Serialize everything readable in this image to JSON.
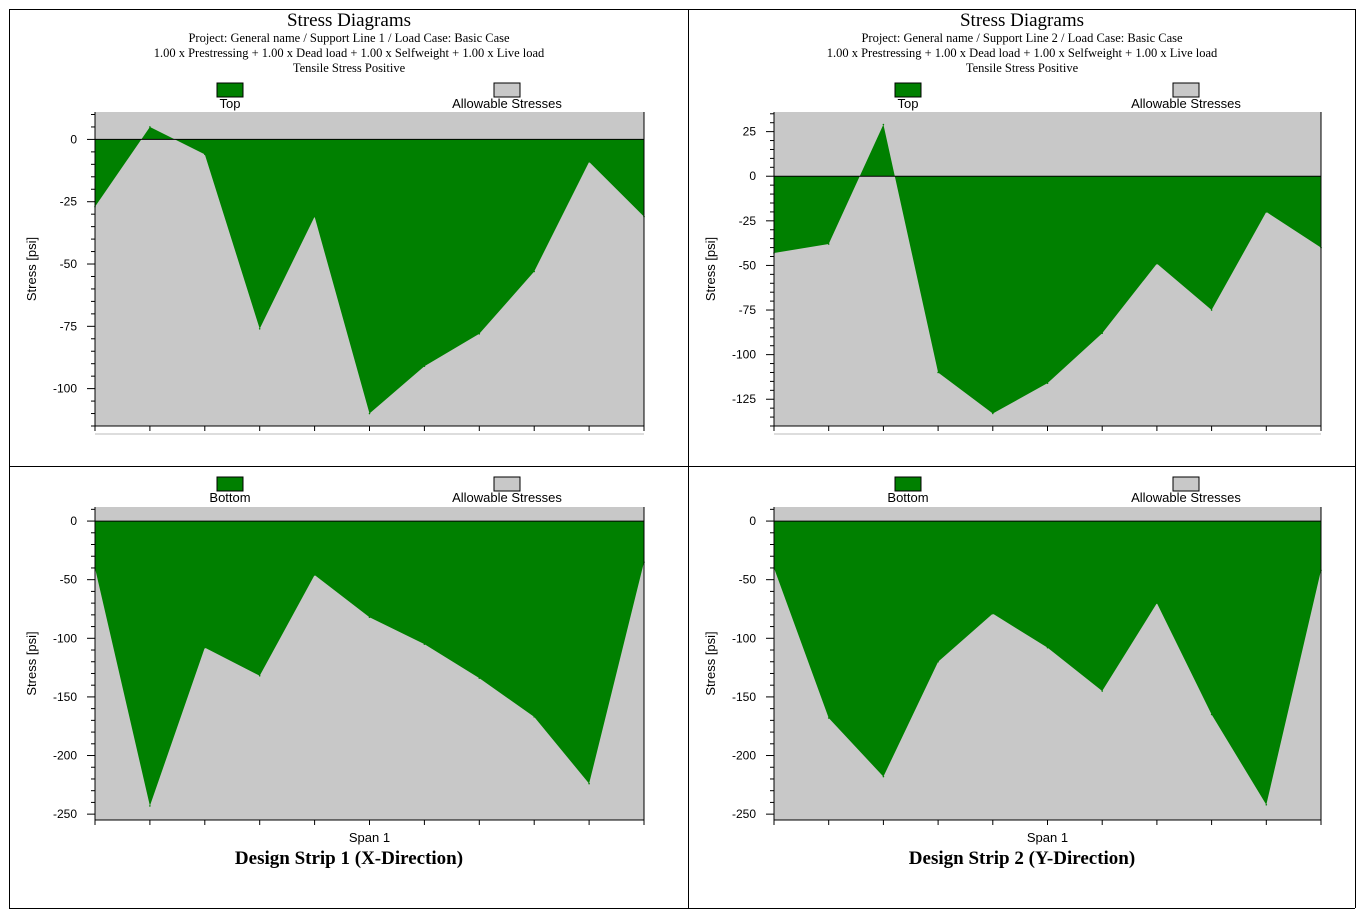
{
  "header_left": {
    "title": "Stress Diagrams",
    "line1": "Project: General name / Support Line 1 / Load Case: Basic Case",
    "line2": "1.00 x Prestressing +  1.00 x Dead load +  1.00 x Selfweight +  1.00 x Live load",
    "line3": "Tensile Stress Positive"
  },
  "header_right": {
    "title": "Stress Diagrams",
    "line1": "Project: General name / Support Line 2 / Load Case: Basic Case",
    "line2": "1.00 x Prestressing +  1.00 x Dead load +  1.00 x Selfweight +  1.00 x Live load",
    "line3": "Tensile Stress Positive"
  },
  "captions": {
    "left": "Design Strip 1 (X-Direction)",
    "right": "Design Strip 2 (Y-Direction)"
  },
  "colors": {
    "stress": "#008000",
    "allowable": "#c8c8c8"
  },
  "chart_data": [
    {
      "type": "area",
      "ylabel": "Stress [psi]",
      "xlabel": "",
      "ylim": [
        -115,
        11
      ],
      "yticks": [
        0,
        -25,
        -50,
        -75,
        -100
      ],
      "grid": false,
      "legend": [
        "Top",
        "Allowable Stresses"
      ],
      "legend_position": "top",
      "series": [
        {
          "name": "Top",
          "x": [
            0,
            1,
            2,
            3,
            4,
            5,
            6,
            7,
            8,
            9,
            10
          ],
          "values": [
            -27,
            5,
            -6,
            -76,
            -31,
            -110,
            -91,
            -78,
            -53,
            -9,
            -31
          ]
        }
      ],
      "allowable": [
        0,
        0
      ]
    },
    {
      "type": "area",
      "ylabel": "Stress [psi]",
      "xlabel": "",
      "ylim": [
        -140,
        36
      ],
      "yticks": [
        25,
        0,
        -25,
        -50,
        -75,
        -100,
        -125
      ],
      "grid": false,
      "legend": [
        "Top",
        "Allowable Stresses"
      ],
      "legend_position": "top",
      "series": [
        {
          "name": "Top",
          "x": [
            0,
            1,
            2,
            3,
            4,
            5,
            6,
            7,
            8,
            9,
            10
          ],
          "values": [
            -43,
            -38,
            29,
            -110,
            -133,
            -116,
            -88,
            -49,
            -75,
            -20,
            -40
          ]
        }
      ],
      "allowable": [
        0,
        0
      ]
    },
    {
      "type": "area",
      "ylabel": "Stress [psi]",
      "xlabel": "Span 1",
      "ylim": [
        -255,
        12
      ],
      "yticks": [
        0,
        -50,
        -100,
        -150,
        -200,
        -250
      ],
      "grid": false,
      "legend": [
        "Bottom",
        "Allowable Stresses"
      ],
      "legend_position": "top",
      "series": [
        {
          "name": "Bottom",
          "x": [
            0,
            1,
            2,
            3,
            4,
            5,
            6,
            7,
            8,
            9,
            10
          ],
          "values": [
            -40,
            -243,
            -108,
            -132,
            -46,
            -82,
            -105,
            -134,
            -167,
            -224,
            -35
          ]
        }
      ],
      "allowable": [
        0,
        0
      ]
    },
    {
      "type": "area",
      "ylabel": "Stress [psi]",
      "xlabel": "Span 1",
      "ylim": [
        -255,
        12
      ],
      "yticks": [
        0,
        -50,
        -100,
        -150,
        -200,
        -250
      ],
      "grid": false,
      "legend": [
        "Bottom",
        "Allowable Stresses"
      ],
      "legend_position": "top",
      "series": [
        {
          "name": "Bottom",
          "x": [
            0,
            1,
            2,
            3,
            4,
            5,
            6,
            7,
            8,
            9,
            10
          ],
          "values": [
            -40,
            -168,
            -218,
            -120,
            -79,
            -108,
            -145,
            -70,
            -165,
            -242,
            -42
          ]
        }
      ],
      "allowable": [
        0,
        0
      ]
    }
  ]
}
